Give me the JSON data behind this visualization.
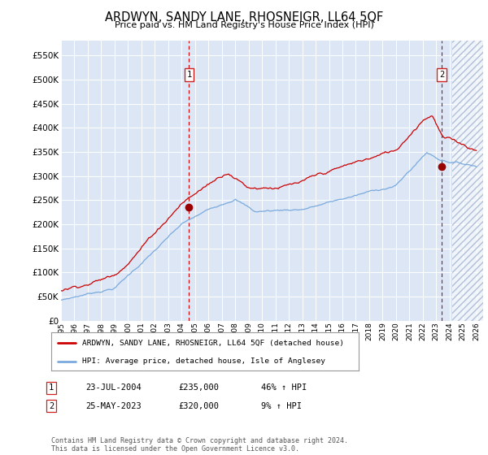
{
  "title": "ARDWYN, SANDY LANE, RHOSNEIGR, LL64 5QF",
  "subtitle": "Price paid vs. HM Land Registry's House Price Index (HPI)",
  "background_color": "#dce6f5",
  "ylim": [
    0,
    580000
  ],
  "yticks": [
    0,
    50000,
    100000,
    150000,
    200000,
    250000,
    300000,
    350000,
    400000,
    450000,
    500000,
    550000
  ],
  "xlim_start": 1995.0,
  "xlim_end": 2026.5,
  "xticks": [
    1995,
    1996,
    1997,
    1998,
    1999,
    2000,
    2001,
    2002,
    2003,
    2004,
    2005,
    2006,
    2007,
    2008,
    2009,
    2010,
    2011,
    2012,
    2013,
    2014,
    2015,
    2016,
    2017,
    2018,
    2019,
    2020,
    2021,
    2022,
    2023,
    2024,
    2025,
    2026
  ],
  "sale1_x": 2004.55,
  "sale1_y": 235000,
  "sale1_label": "1",
  "sale1_date": "23-JUL-2004",
  "sale1_price": "£235,000",
  "sale1_hpi": "46% ↑ HPI",
  "sale2_x": 2023.4,
  "sale2_y": 320000,
  "sale2_label": "2",
  "sale2_date": "25-MAY-2023",
  "sale2_price": "£320,000",
  "sale2_hpi": "9% ↑ HPI",
  "line1_color": "#cc0000",
  "line2_color": "#7aaadd",
  "marker_color": "#990000",
  "dashed_color": "#cc0000",
  "legend1_label": "ARDWYN, SANDY LANE, RHOSNEIGR, LL64 5QF (detached house)",
  "legend2_label": "HPI: Average price, detached house, Isle of Anglesey",
  "footer": "Contains HM Land Registry data © Crown copyright and database right 2024.\nThis data is licensed under the Open Government Licence v3.0.",
  "hatch_start": 2024.17
}
